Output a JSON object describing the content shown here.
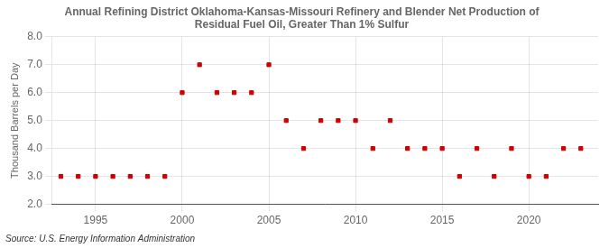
{
  "chart_data": {
    "type": "scatter",
    "title": "Annual Refining District Oklahoma-Kansas-Missouri Refinery and Blender Net Production of\nResidual Fuel Oil, Greater Than 1% Sulfur",
    "ylabel": "Thousand Barrels per Day",
    "annotations": [
      "Source: U.S. Energy Information Administration"
    ],
    "x": [
      1993,
      1994,
      1995,
      1996,
      1997,
      1998,
      1999,
      2000,
      2001,
      2002,
      2003,
      2004,
      2005,
      2006,
      2007,
      2008,
      2009,
      2010,
      2011,
      2012,
      2013,
      2014,
      2015,
      2016,
      2017,
      2018,
      2019,
      2020,
      2021,
      2022,
      2023
    ],
    "values": [
      3.0,
      3.0,
      3.0,
      3.0,
      3.0,
      3.0,
      3.0,
      6.0,
      7.0,
      6.0,
      6.0,
      6.0,
      7.0,
      5.0,
      4.0,
      5.0,
      5.0,
      5.0,
      4.0,
      5.0,
      4.0,
      4.0,
      4.0,
      3.0,
      4.0,
      3.0,
      4.0,
      3.0,
      3.0,
      4.0,
      4.0
    ],
    "color": "#cc0000",
    "marker": "square",
    "xlim": [
      1992.5,
      2024
    ],
    "xticks": [
      1995,
      2000,
      2005,
      2010,
      2015,
      2020
    ],
    "ylim": [
      2.0,
      8.0
    ],
    "yticks": [
      {
        "value": 2.0,
        "label": "2.0"
      },
      {
        "value": 3.0,
        "label": "3.0"
      },
      {
        "value": 4.0,
        "label": "4.0"
      },
      {
        "value": 5.0,
        "label": "5.0"
      },
      {
        "value": 6.0,
        "label": "6.0"
      },
      {
        "value": 7.0,
        "label": "7.0"
      },
      {
        "value": 8.0,
        "label": "8.0"
      }
    ],
    "grid": true
  }
}
